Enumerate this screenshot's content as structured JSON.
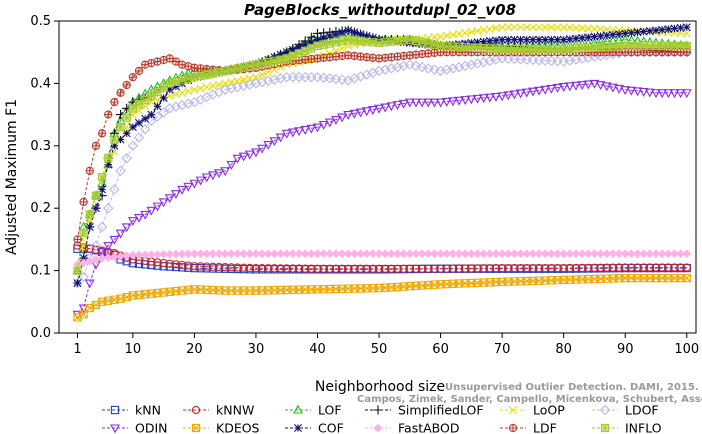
{
  "chart_data": {
    "type": "line",
    "title": "PageBlocks_withoutdupl_02_v08",
    "xlabel": "Neighborhood size",
    "ylabel": "Adjusted Maximum F1",
    "xlim": [
      1,
      100
    ],
    "ylim": [
      0,
      0.5
    ],
    "x_ticks": [
      1,
      10,
      20,
      30,
      40,
      50,
      60,
      70,
      80,
      90,
      100
    ],
    "y_ticks": [
      0.0,
      0.1,
      0.2,
      0.3,
      0.4,
      0.5
    ],
    "x_tick_labels": [
      "1",
      "10",
      "20",
      "30",
      "40",
      "50",
      "60",
      "70",
      "80",
      "90",
      "100"
    ],
    "y_tick_labels": [
      "0.0",
      "0.1",
      "0.2",
      "0.3",
      "0.4",
      "0.5"
    ],
    "legend_position": "bottom",
    "watermark": [
      "Unsupervised Outlier Detection. DAMI, 2015.",
      "Campos, Zimek, Sander, Campello, Micenkova, Schubert, Assent, Houle"
    ],
    "series": [
      {
        "name": "kNN",
        "color": "#1f3fcc",
        "marker": "square",
        "points": [
          [
            1,
            0.135
          ],
          [
            3,
            0.135
          ],
          [
            5,
            0.13
          ],
          [
            7,
            0.125
          ],
          [
            8,
            0.118
          ],
          [
            10,
            0.112
          ],
          [
            15,
            0.107
          ],
          [
            20,
            0.104
          ],
          [
            30,
            0.102
          ],
          [
            40,
            0.102
          ],
          [
            50,
            0.102
          ],
          [
            60,
            0.103
          ],
          [
            70,
            0.103
          ],
          [
            80,
            0.103
          ],
          [
            90,
            0.104
          ],
          [
            100,
            0.104
          ]
        ]
      },
      {
        "name": "kNNW",
        "color": "#d62020",
        "marker": "circle",
        "points": [
          [
            1,
            0.14
          ],
          [
            3,
            0.135
          ],
          [
            5,
            0.132
          ],
          [
            7,
            0.128
          ],
          [
            8,
            0.124
          ],
          [
            10,
            0.118
          ],
          [
            15,
            0.112
          ],
          [
            20,
            0.107
          ],
          [
            30,
            0.104
          ],
          [
            40,
            0.103
          ],
          [
            50,
            0.103
          ],
          [
            60,
            0.103
          ],
          [
            70,
            0.104
          ],
          [
            80,
            0.104
          ],
          [
            90,
            0.105
          ],
          [
            100,
            0.105
          ]
        ]
      },
      {
        "name": "LOF",
        "color": "#22bb22",
        "marker": "triangle-up",
        "points": [
          [
            1,
            0.1
          ],
          [
            2,
            0.17
          ],
          [
            3,
            0.19
          ],
          [
            4,
            0.22
          ],
          [
            5,
            0.24
          ],
          [
            6,
            0.27
          ],
          [
            7,
            0.32
          ],
          [
            8,
            0.34
          ],
          [
            10,
            0.37
          ],
          [
            13,
            0.39
          ],
          [
            16,
            0.405
          ],
          [
            20,
            0.42
          ],
          [
            25,
            0.42
          ],
          [
            30,
            0.43
          ],
          [
            35,
            0.45
          ],
          [
            40,
            0.47
          ],
          [
            45,
            0.475
          ],
          [
            50,
            0.47
          ],
          [
            55,
            0.47
          ],
          [
            60,
            0.46
          ],
          [
            70,
            0.46
          ],
          [
            80,
            0.46
          ],
          [
            90,
            0.47
          ],
          [
            100,
            0.46
          ]
        ]
      },
      {
        "name": "SimplifiedLOF",
        "color": "#111111",
        "marker": "plus",
        "points": [
          [
            1,
            0.08
          ],
          [
            2,
            0.12
          ],
          [
            3,
            0.17
          ],
          [
            4,
            0.2
          ],
          [
            5,
            0.22
          ],
          [
            6,
            0.28
          ],
          [
            7,
            0.32
          ],
          [
            8,
            0.35
          ],
          [
            10,
            0.37
          ],
          [
            13,
            0.38
          ],
          [
            16,
            0.4
          ],
          [
            20,
            0.41
          ],
          [
            25,
            0.42
          ],
          [
            30,
            0.43
          ],
          [
            35,
            0.45
          ],
          [
            40,
            0.48
          ],
          [
            45,
            0.485
          ],
          [
            50,
            0.47
          ],
          [
            55,
            0.47
          ],
          [
            60,
            0.46
          ],
          [
            70,
            0.46
          ],
          [
            80,
            0.455
          ],
          [
            90,
            0.455
          ],
          [
            100,
            0.45
          ]
        ]
      },
      {
        "name": "LoOP",
        "color": "#e8e000",
        "marker": "x",
        "points": [
          [
            1,
            0.1
          ],
          [
            2,
            0.14
          ],
          [
            3,
            0.18
          ],
          [
            4,
            0.22
          ],
          [
            5,
            0.25
          ],
          [
            6,
            0.27
          ],
          [
            7,
            0.29
          ],
          [
            8,
            0.31
          ],
          [
            10,
            0.35
          ],
          [
            13,
            0.37
          ],
          [
            16,
            0.38
          ],
          [
            20,
            0.39
          ],
          [
            25,
            0.4
          ],
          [
            30,
            0.41
          ],
          [
            35,
            0.43
          ],
          [
            40,
            0.44
          ],
          [
            45,
            0.46
          ],
          [
            50,
            0.47
          ],
          [
            55,
            0.47
          ],
          [
            60,
            0.475
          ],
          [
            70,
            0.49
          ],
          [
            80,
            0.49
          ],
          [
            90,
            0.485
          ],
          [
            100,
            0.48
          ]
        ]
      },
      {
        "name": "LDOF",
        "color": "#b8b8f0",
        "marker": "diamond",
        "points": [
          [
            1,
            0.08
          ],
          [
            2,
            0.09
          ],
          [
            3,
            0.12
          ],
          [
            4,
            0.14
          ],
          [
            5,
            0.17
          ],
          [
            6,
            0.2
          ],
          [
            7,
            0.23
          ],
          [
            8,
            0.26
          ],
          [
            10,
            0.3
          ],
          [
            13,
            0.34
          ],
          [
            16,
            0.36
          ],
          [
            20,
            0.37
          ],
          [
            25,
            0.39
          ],
          [
            30,
            0.4
          ],
          [
            35,
            0.41
          ],
          [
            40,
            0.41
          ],
          [
            45,
            0.405
          ],
          [
            50,
            0.42
          ],
          [
            55,
            0.43
          ],
          [
            60,
            0.42
          ],
          [
            70,
            0.44
          ],
          [
            80,
            0.435
          ],
          [
            90,
            0.45
          ],
          [
            100,
            0.45
          ]
        ]
      },
      {
        "name": "ODIN",
        "color": "#8a2be2",
        "marker": "triangle-down",
        "points": [
          [
            1,
            0.03
          ],
          [
            2,
            0.04
          ],
          [
            3,
            0.08
          ],
          [
            4,
            0.11
          ],
          [
            5,
            0.13
          ],
          [
            6,
            0.14
          ],
          [
            8,
            0.16
          ],
          [
            10,
            0.18
          ],
          [
            12,
            0.19
          ],
          [
            15,
            0.21
          ],
          [
            18,
            0.23
          ],
          [
            20,
            0.24
          ],
          [
            22,
            0.25
          ],
          [
            25,
            0.26
          ],
          [
            27,
            0.28
          ],
          [
            30,
            0.29
          ],
          [
            35,
            0.32
          ],
          [
            40,
            0.33
          ],
          [
            45,
            0.35
          ],
          [
            50,
            0.36
          ],
          [
            55,
            0.37
          ],
          [
            60,
            0.37
          ],
          [
            70,
            0.38
          ],
          [
            80,
            0.395
          ],
          [
            85,
            0.4
          ],
          [
            90,
            0.39
          ],
          [
            95,
            0.385
          ],
          [
            100,
            0.385
          ]
        ]
      },
      {
        "name": "KDEOS",
        "color": "#f0a800",
        "marker": "square-x",
        "points": [
          [
            1,
            0.025
          ],
          [
            2,
            0.03
          ],
          [
            3,
            0.04
          ],
          [
            5,
            0.05
          ],
          [
            8,
            0.055
          ],
          [
            10,
            0.06
          ],
          [
            15,
            0.065
          ],
          [
            20,
            0.07
          ],
          [
            25,
            0.068
          ],
          [
            30,
            0.068
          ],
          [
            40,
            0.07
          ],
          [
            50,
            0.072
          ],
          [
            60,
            0.078
          ],
          [
            70,
            0.082
          ],
          [
            80,
            0.085
          ],
          [
            90,
            0.088
          ],
          [
            100,
            0.088
          ]
        ]
      },
      {
        "name": "COF",
        "color": "#10106e",
        "marker": "star",
        "points": [
          [
            1,
            0.08
          ],
          [
            2,
            0.12
          ],
          [
            3,
            0.17
          ],
          [
            4,
            0.2
          ],
          [
            5,
            0.23
          ],
          [
            6,
            0.27
          ],
          [
            7,
            0.3
          ],
          [
            8,
            0.31
          ],
          [
            10,
            0.33
          ],
          [
            13,
            0.35
          ],
          [
            16,
            0.39
          ],
          [
            20,
            0.41
          ],
          [
            25,
            0.42
          ],
          [
            30,
            0.43
          ],
          [
            35,
            0.45
          ],
          [
            40,
            0.47
          ],
          [
            45,
            0.485
          ],
          [
            50,
            0.47
          ],
          [
            55,
            0.465
          ],
          [
            60,
            0.46
          ],
          [
            70,
            0.47
          ],
          [
            80,
            0.47
          ],
          [
            90,
            0.48
          ],
          [
            100,
            0.49
          ]
        ]
      },
      {
        "name": "FastABOD",
        "color": "#ffb0e8",
        "marker": "diamond-filled",
        "points": [
          [
            1,
            0.11
          ],
          [
            3,
            0.115
          ],
          [
            5,
            0.12
          ],
          [
            8,
            0.123
          ],
          [
            10,
            0.125
          ],
          [
            20,
            0.127
          ],
          [
            30,
            0.127
          ],
          [
            40,
            0.127
          ],
          [
            50,
            0.127
          ],
          [
            60,
            0.127
          ],
          [
            70,
            0.127
          ],
          [
            80,
            0.127
          ],
          [
            90,
            0.127
          ],
          [
            100,
            0.127
          ]
        ]
      },
      {
        "name": "LDF",
        "color": "#c0392b",
        "marker": "circle-plus",
        "points": [
          [
            1,
            0.15
          ],
          [
            2,
            0.21
          ],
          [
            3,
            0.26
          ],
          [
            4,
            0.3
          ],
          [
            5,
            0.32
          ],
          [
            6,
            0.35
          ],
          [
            7,
            0.37
          ],
          [
            8,
            0.385
          ],
          [
            10,
            0.41
          ],
          [
            12,
            0.43
          ],
          [
            14,
            0.435
          ],
          [
            16,
            0.44
          ],
          [
            18,
            0.43
          ],
          [
            20,
            0.425
          ],
          [
            25,
            0.42
          ],
          [
            30,
            0.425
          ],
          [
            35,
            0.435
          ],
          [
            40,
            0.44
          ],
          [
            45,
            0.445
          ],
          [
            50,
            0.44
          ],
          [
            55,
            0.445
          ],
          [
            60,
            0.45
          ],
          [
            70,
            0.45
          ],
          [
            80,
            0.45
          ],
          [
            90,
            0.45
          ],
          [
            100,
            0.45
          ]
        ]
      },
      {
        "name": "INFLO",
        "color": "#a8cc30",
        "marker": "square-star",
        "points": [
          [
            1,
            0.1
          ],
          [
            2,
            0.16
          ],
          [
            3,
            0.19
          ],
          [
            4,
            0.22
          ],
          [
            5,
            0.25
          ],
          [
            6,
            0.28
          ],
          [
            7,
            0.31
          ],
          [
            8,
            0.33
          ],
          [
            10,
            0.36
          ],
          [
            13,
            0.38
          ],
          [
            16,
            0.4
          ],
          [
            20,
            0.41
          ],
          [
            25,
            0.42
          ],
          [
            30,
            0.43
          ],
          [
            35,
            0.44
          ],
          [
            40,
            0.46
          ],
          [
            45,
            0.47
          ],
          [
            50,
            0.465
          ],
          [
            55,
            0.47
          ],
          [
            60,
            0.46
          ],
          [
            70,
            0.455
          ],
          [
            80,
            0.455
          ],
          [
            90,
            0.46
          ],
          [
            100,
            0.46
          ]
        ]
      }
    ]
  }
}
